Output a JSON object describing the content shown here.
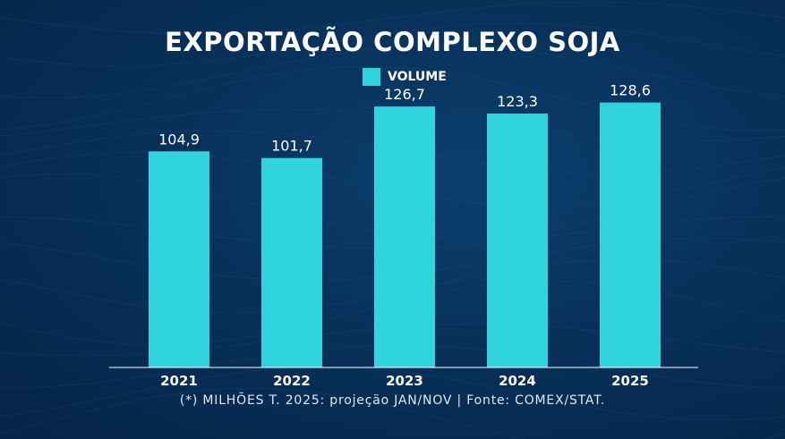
{
  "colors": {
    "bar": "#2fd4dc",
    "axis": "#ffffff",
    "text": "#ffffff"
  },
  "chart_data": {
    "type": "bar",
    "title": "EXPORTAÇÃO COMPLEXO SOJA",
    "categories": [
      "2021",
      "2022",
      "2023",
      "2024",
      "2025"
    ],
    "series": [
      {
        "name": "VOLUME",
        "values": [
          104.9,
          101.7,
          126.7,
          123.3,
          128.6
        ],
        "labels": [
          "104,9",
          "101,7",
          "126,7",
          "123,3",
          "128,6"
        ]
      }
    ],
    "xlabel": "",
    "ylabel": "",
    "ylim": [
      0,
      135
    ],
    "grid": false,
    "legend": "top-center",
    "footnote": "(*) MILHÕES T. 2025: projeção JAN/NOV | Fonte: COMEX/STAT."
  }
}
